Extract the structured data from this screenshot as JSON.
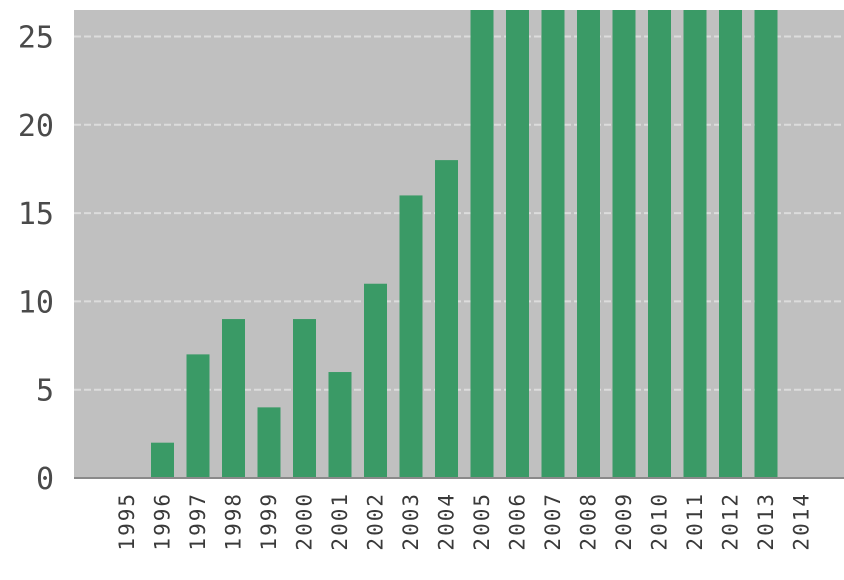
{
  "chart_data": {
    "type": "bar",
    "title": "",
    "xlabel": "",
    "ylabel": "",
    "categories": [
      "1995",
      "1996",
      "1997",
      "1998",
      "1999",
      "2000",
      "2001",
      "2002",
      "2003",
      "2004",
      "2005",
      "2006",
      "2007",
      "2008",
      "2009",
      "2010",
      "2011",
      "2012",
      "2013",
      "2014"
    ],
    "values": [
      0,
      2,
      7,
      9,
      4,
      9,
      6,
      11,
      16,
      18,
      26.5,
      26.5,
      26.5,
      26.5,
      26.5,
      26.5,
      26.5,
      26.5,
      26.5,
      0
    ],
    "ylim": [
      0,
      26.5
    ],
    "yticks": [
      "0",
      "5",
      "10",
      "15",
      "20",
      "25"
    ],
    "grid": true,
    "legend": "none",
    "colors": {
      "bar": "#3a9a66",
      "plot_background": "#c0c0c0",
      "gridline": "#dcdcdc",
      "axis": "#8a8a8a"
    }
  }
}
